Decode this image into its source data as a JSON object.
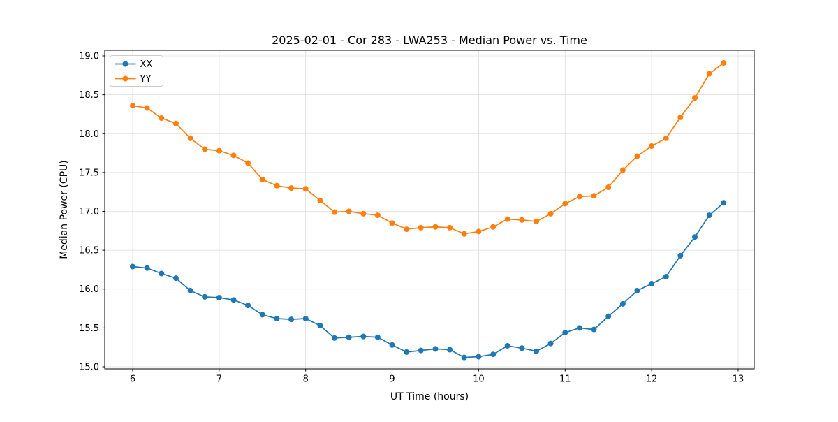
{
  "chart_data": {
    "type": "line",
    "title": "2025-02-01 - Cor 283 - LWA253 - Median Power vs. Time",
    "xlabel": "UT Time (hours)",
    "ylabel": "Median Power (CPU)",
    "xlim": [
      5.677,
      13.186
    ],
    "ylim": [
      14.973,
      19.072
    ],
    "xticks": [
      6,
      7,
      8,
      9,
      10,
      11,
      12,
      13
    ],
    "yticks": [
      15.0,
      15.5,
      16.0,
      16.5,
      17.0,
      17.5,
      18.0,
      18.5,
      19.0
    ],
    "grid": true,
    "legend_position": "upper left",
    "x": [
      6.0,
      6.167,
      6.333,
      6.5,
      6.667,
      6.833,
      7.0,
      7.167,
      7.333,
      7.5,
      7.667,
      7.833,
      8.0,
      8.167,
      8.333,
      8.5,
      8.667,
      8.833,
      9.0,
      9.167,
      9.333,
      9.5,
      9.667,
      9.833,
      10.0,
      10.167,
      10.333,
      10.5,
      10.667,
      10.833,
      11.0,
      11.167,
      11.333,
      11.5,
      11.667,
      11.833,
      12.0,
      12.167,
      12.333,
      12.5,
      12.667,
      12.833
    ],
    "series": [
      {
        "name": "XX",
        "color": "#1f77b4",
        "values": [
          16.29,
          16.27,
          16.2,
          16.14,
          15.98,
          15.9,
          15.89,
          15.86,
          15.79,
          15.67,
          15.62,
          15.61,
          15.62,
          15.53,
          15.37,
          15.38,
          15.39,
          15.38,
          15.28,
          15.19,
          15.21,
          15.23,
          15.22,
          15.12,
          15.13,
          15.16,
          15.27,
          15.24,
          15.2,
          15.3,
          15.44,
          15.5,
          15.48,
          15.65,
          15.81,
          15.98,
          16.07,
          16.16,
          16.43,
          16.67,
          16.95,
          17.11
        ]
      },
      {
        "name": "YY",
        "color": "#ff7f0e",
        "values": [
          18.36,
          18.33,
          18.2,
          18.13,
          17.94,
          17.8,
          17.78,
          17.72,
          17.62,
          17.41,
          17.33,
          17.3,
          17.29,
          17.14,
          16.99,
          17.0,
          16.97,
          16.95,
          16.85,
          16.77,
          16.79,
          16.8,
          16.79,
          16.71,
          16.74,
          16.8,
          16.9,
          16.89,
          16.87,
          16.97,
          17.1,
          17.19,
          17.2,
          17.31,
          17.53,
          17.71,
          17.84,
          17.94,
          18.21,
          18.46,
          18.77,
          18.91
        ]
      }
    ],
    "style": {
      "grid_color": "#dcdcdc",
      "spine_color": "#000000",
      "legend_border_color": "#cccccc",
      "marker_radius": 4,
      "line_width": 1.7
    }
  }
}
